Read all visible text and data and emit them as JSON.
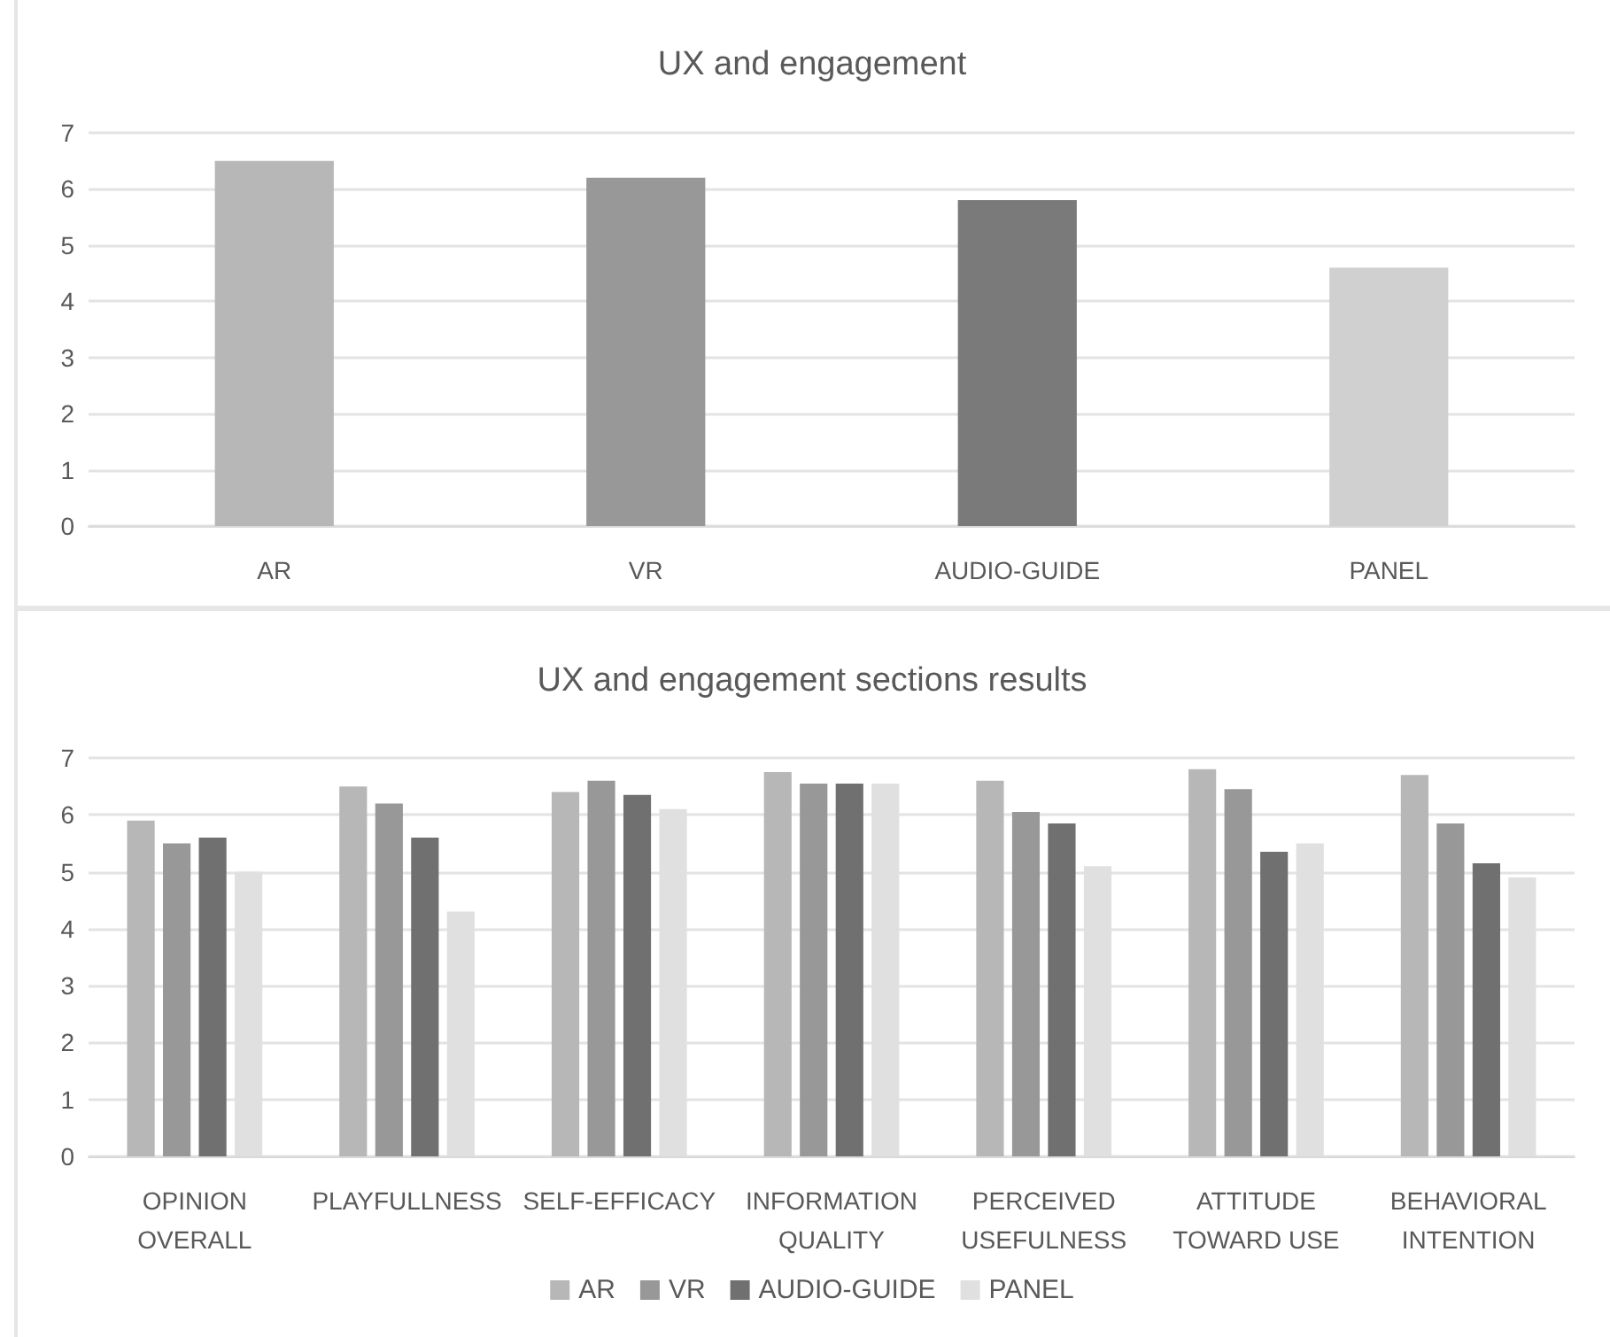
{
  "chart_data": [
    {
      "type": "bar",
      "title": "UX and engagement",
      "categories": [
        "AR",
        "VR",
        "AUDIO-GUIDE",
        "PANEL"
      ],
      "values": [
        6.5,
        6.2,
        5.8,
        4.6
      ],
      "colors": [
        "#b7b7b7",
        "#989898",
        "#7a7a7a",
        "#cfd0cf"
      ],
      "ylim": [
        0,
        7
      ],
      "yticks": [
        0,
        1,
        2,
        3,
        4,
        5,
        6,
        7
      ],
      "grid": "y",
      "legend": false
    },
    {
      "type": "bar",
      "title": "UX and engagement sections results",
      "categories": [
        "OPINION\nOVERALL",
        "PLAYFULLNESS",
        "SELF-EFFICACY",
        "INFORMATION\nQUALITY",
        "PERCEIVED\nUSEFULNESS",
        "ATTITUDE\nTOWARD USE",
        "BEHAVIORAL\nINTENTION"
      ],
      "series": [
        {
          "name": "AR",
          "color": "#b7b7b7",
          "values": [
            5.9,
            6.5,
            6.4,
            6.75,
            6.6,
            6.8,
            6.7
          ]
        },
        {
          "name": "VR",
          "color": "#989898",
          "values": [
            5.5,
            6.2,
            6.6,
            6.55,
            6.05,
            6.45,
            5.85
          ]
        },
        {
          "name": "AUDIO-GUIDE",
          "color": "#707070",
          "values": [
            5.6,
            5.6,
            6.35,
            6.55,
            5.85,
            5.35,
            5.15
          ]
        },
        {
          "name": "PANEL",
          "color": "#e0e0e0",
          "values": [
            5.0,
            4.3,
            6.1,
            6.55,
            5.1,
            5.5,
            4.9
          ]
        }
      ],
      "ylim": [
        0,
        7
      ],
      "yticks": [
        0,
        1,
        2,
        3,
        4,
        5,
        6,
        7
      ],
      "grid": "y",
      "legend": "bottom"
    }
  ]
}
